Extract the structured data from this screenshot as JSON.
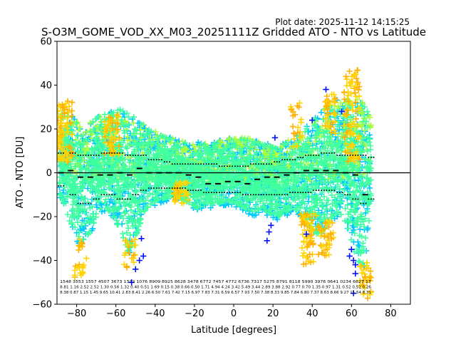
{
  "chart_data": {
    "type": "scatter",
    "plot_date_label": "Plot date: 2025-11-12 14:15:25",
    "title": "S-O3M_GOME_VOD_XX_M03_20251111Z Gridded ATO - NTO vs Latitude",
    "xlabel": "Latitude [degrees]",
    "ylabel": "ATO - NTO [DU]",
    "xlim": [
      -90,
      90
    ],
    "ylim": [
      -60,
      60
    ],
    "xticks": [
      -80,
      -60,
      -40,
      -20,
      0,
      20,
      40,
      60,
      80
    ],
    "yticks": [
      -60,
      -40,
      -20,
      0,
      20,
      40,
      60
    ],
    "zero_line": 0,
    "marker": "+",
    "colors": {
      "dense": "#40ffa0",
      "cyan": "#00c8ff",
      "lime": "#a8ff40",
      "yellow": "#ffd400",
      "orange": "#ffb000",
      "blue": "#0010ff",
      "black": "#000000",
      "axis": "#000000",
      "background": "#ffffff"
    },
    "envelope": {
      "lat": [
        -88,
        -82,
        -78,
        -74,
        -70,
        -66,
        -62,
        -58,
        -54,
        -50,
        -46,
        -42,
        -38,
        -34,
        -30,
        -26,
        -22,
        -18,
        -14,
        -10,
        -6,
        -2,
        2,
        6,
        10,
        14,
        18,
        22,
        26,
        30,
        34,
        38,
        42,
        46,
        50,
        54,
        58,
        62,
        66,
        70
      ],
      "low": [
        -12,
        -28,
        -34,
        -30,
        -22,
        -18,
        -20,
        -28,
        -38,
        -32,
        -20,
        -16,
        -14,
        -13,
        -12,
        -14,
        -16,
        -18,
        -16,
        -16,
        -15,
        -15,
        -16,
        -18,
        -20,
        -18,
        -20,
        -22,
        -20,
        -18,
        -20,
        -26,
        -30,
        -28,
        -22,
        -20,
        -26,
        -40,
        -46,
        -20
      ],
      "high": [
        28,
        26,
        22,
        22,
        26,
        28,
        28,
        30,
        28,
        26,
        22,
        20,
        18,
        17,
        16,
        15,
        14,
        14,
        14,
        14,
        15,
        16,
        16,
        16,
        15,
        14,
        13,
        12,
        14,
        16,
        18,
        22,
        26,
        30,
        32,
        34,
        34,
        34,
        32,
        26
      ]
    },
    "median_segments": [
      {
        "lat": -88,
        "value": 0
      },
      {
        "lat": -83,
        "value": 1
      },
      {
        "lat": -78,
        "value": -2
      },
      {
        "lat": -73,
        "value": -2
      },
      {
        "lat": -68,
        "value": -1
      },
      {
        "lat": -63,
        "value": -1
      },
      {
        "lat": -58,
        "value": 0
      },
      {
        "lat": -53,
        "value": -1
      },
      {
        "lat": -48,
        "value": 2
      },
      {
        "lat": -43,
        "value": 0
      },
      {
        "lat": -38,
        "value": 0
      },
      {
        "lat": -33,
        "value": 0
      },
      {
        "lat": -28,
        "value": 0
      },
      {
        "lat": -23,
        "value": -1
      },
      {
        "lat": -18,
        "value": -2
      },
      {
        "lat": -13,
        "value": -5
      },
      {
        "lat": -8,
        "value": -5
      },
      {
        "lat": -3,
        "value": -4
      },
      {
        "lat": 2,
        "value": -4
      },
      {
        "lat": 7,
        "value": -5
      },
      {
        "lat": 12,
        "value": -3
      },
      {
        "lat": 17,
        "value": -2
      },
      {
        "lat": 22,
        "value": -2
      },
      {
        "lat": 27,
        "value": -1
      },
      {
        "lat": 32,
        "value": 0
      },
      {
        "lat": 37,
        "value": 1
      },
      {
        "lat": 42,
        "value": 1
      },
      {
        "lat": 47,
        "value": 1
      },
      {
        "lat": 52,
        "value": 1
      },
      {
        "lat": 57,
        "value": 0
      },
      {
        "lat": 62,
        "value": -1
      },
      {
        "lat": 67,
        "value": -10
      }
    ],
    "upper_quartile": [
      9,
      9,
      8,
      8,
      8,
      9,
      9,
      9,
      8,
      8,
      8,
      6,
      6,
      5,
      4,
      4,
      4,
      4,
      4,
      4,
      3,
      3,
      3,
      3,
      4,
      4,
      4,
      5,
      6,
      6,
      7,
      8,
      8,
      9,
      9,
      8,
      8,
      8,
      8,
      7
    ],
    "lower_quartile": [
      -6,
      -10,
      -14,
      -14,
      -12,
      -10,
      -10,
      -12,
      -12,
      -10,
      -8,
      -7,
      -7,
      -7,
      -7,
      -7,
      -8,
      -8,
      -9,
      -9,
      -9,
      -9,
      -9,
      -10,
      -10,
      -10,
      -10,
      -10,
      -10,
      -9,
      -9,
      -9,
      -8,
      -8,
      -8,
      -9,
      -10,
      -12,
      -14,
      -12
    ],
    "stats_text_rows": [
      "1548 3553 1557 4507 3673 1372 1076 8909 8925 8628 3478 6772 7457 4772 6736 7317 5275 8791 8118 5990 3976 0641 0234 6627 17",
      "8.81 1.16 2.52 2.52 1.30 0.56 1.32 0.40 0.51 1.69 0.15 0.38 0.66 0.50 1.71 4.94 4.24 3.42 5.49 3.44 2.89 3.88 2.92 0.77 0.70 1.35 0.97 1.31 0.52 0.52 0.26",
      "8.38 0.87 1.15 1.45 9.65 10.41 2.83 8.41 2.26 6.50 7.61 7.42 7.15 6.97 7.83 7.31 6.59 6.57 7.93 7.50 7.38 8.33 9.85 7.84 6.80 7.37 8.63 8.66 9.27 11.54 8.31"
    ]
  }
}
